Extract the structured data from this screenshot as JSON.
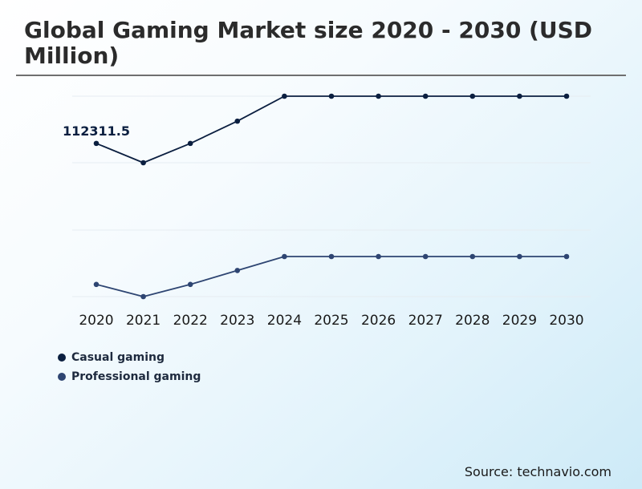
{
  "title": "Global Gaming Market size 2020 - 2030 (USD Million)",
  "source": "Source: technavio.com",
  "chart_data": {
    "type": "line",
    "title": "Global Gaming Market size 2020 - 2030 (USD Million)",
    "xlabel": "",
    "ylabel": "",
    "grid": true,
    "legend": "bottom-left",
    "categories": [
      "2020",
      "2021",
      "2022",
      "2023",
      "2024",
      "2025",
      "2026",
      "2027",
      "2028",
      "2029",
      "2030"
    ],
    "series": [
      {
        "name": "Casual gaming",
        "color": "#0b1f40",
        "values": [
          112311.5,
          106500,
          112311.5,
          119000,
          126500,
          126500,
          126500,
          126500,
          126500,
          126500,
          126500
        ]
      },
      {
        "name": "Professional gaming",
        "color": "#2e4572",
        "values": [
          74000,
          70500,
          74000,
          78000,
          82000,
          82000,
          82000,
          82000,
          82000,
          82000,
          82000
        ]
      }
    ],
    "annotations": [
      {
        "series": 0,
        "index": 0,
        "text": "112311.5"
      }
    ]
  }
}
